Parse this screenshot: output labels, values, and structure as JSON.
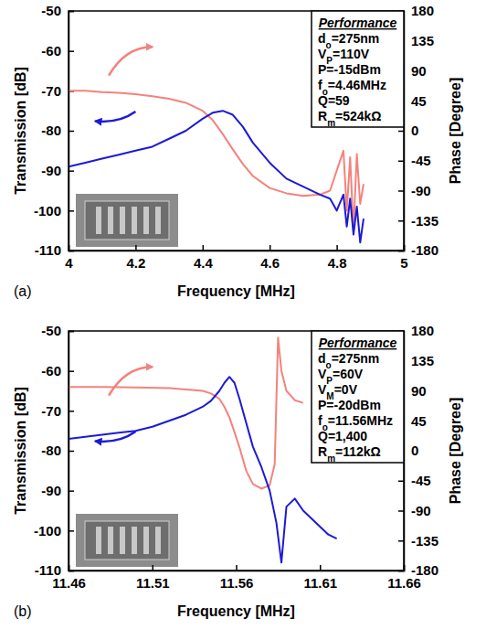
{
  "chart_data": [
    {
      "type": "line",
      "title": "(a)",
      "xlabel": "Frequency [MHz]",
      "ylabel": "Transmission [dB]",
      "y2label": "Phase [Degree]",
      "xlim": [
        4,
        5
      ],
      "xticks": [
        4,
        4.2,
        4.4,
        4.6,
        4.8,
        5
      ],
      "ylim": [
        -110,
        -50
      ],
      "yticks": [
        -110,
        -100,
        -90,
        -80,
        -70,
        -60,
        -50
      ],
      "y2lim": [
        -180,
        180
      ],
      "y2ticks": [
        -180,
        -135,
        -90,
        -45,
        0,
        45,
        90,
        135,
        180
      ],
      "series": [
        {
          "color": "#f4827c",
          "axis": "y2",
          "x": [
            4.0,
            4.05,
            4.1,
            4.15,
            4.2,
            4.25,
            4.3,
            4.35,
            4.4,
            4.43,
            4.46,
            4.49,
            4.52,
            4.55,
            4.6,
            4.65,
            4.7,
            4.75,
            4.78,
            4.8,
            4.82,
            4.83,
            4.84,
            4.85,
            4.86,
            4.87,
            4.88
          ],
          "values": [
            60,
            60,
            58,
            57,
            55,
            52,
            48,
            42,
            30,
            16,
            -5,
            -28,
            -50,
            -68,
            -86,
            -94,
            -98,
            -96,
            -90,
            -60,
            -30,
            -120,
            -40,
            -150,
            -35,
            -110,
            -80
          ]
        },
        {
          "color": "#1c1ad6",
          "x": [
            4.0,
            4.05,
            4.1,
            4.15,
            4.2,
            4.25,
            4.3,
            4.35,
            4.4,
            4.43,
            4.46,
            4.49,
            4.52,
            4.55,
            4.6,
            4.65,
            4.7,
            4.75,
            4.78,
            4.8,
            4.82,
            4.83,
            4.84,
            4.85,
            4.86,
            4.87,
            4.88
          ],
          "values": [
            -89,
            -88,
            -87,
            -86,
            -85,
            -84,
            -82,
            -80,
            -77,
            -75.5,
            -75,
            -76,
            -79,
            -83,
            -88,
            -92,
            -94,
            -96,
            -97,
            -100,
            -96,
            -104,
            -97,
            -106,
            -99,
            -108,
            -102
          ]
        }
      ],
      "annotation": {
        "heading": "Performance",
        "lines": [
          {
            "symbol": "d",
            "sub": "o",
            "text": "=275nm"
          },
          {
            "symbol": "V",
            "sub": "P",
            "text": "=110V"
          },
          {
            "symbol": "P",
            "text": "=-15dBm"
          },
          {
            "symbol": "f",
            "sub": "o",
            "text": "=4.46MHz"
          },
          {
            "symbol": "Q",
            "text": "=59"
          },
          {
            "symbol": "R",
            "sub": "m",
            "text": "=524kΩ"
          }
        ]
      }
    },
    {
      "type": "line",
      "title": "(b)",
      "xlabel": "Frequency [MHz]",
      "ylabel": "Transmission [dB]",
      "y2label": "Phase [Degree]",
      "xlim": [
        11.46,
        11.66
      ],
      "xticks": [
        11.46,
        11.51,
        11.56,
        11.61,
        11.66
      ],
      "ylim": [
        -110,
        -50
      ],
      "yticks": [
        -110,
        -100,
        -90,
        -80,
        -70,
        -60,
        -50
      ],
      "y2lim": [
        -180,
        180
      ],
      "y2ticks": [
        -180,
        -135,
        -90,
        -45,
        0,
        45,
        90,
        135,
        180
      ],
      "series": [
        {
          "color": "#f4827c",
          "axis": "y2",
          "x": [
            11.46,
            11.48,
            11.5,
            11.52,
            11.54,
            11.545,
            11.55,
            11.553,
            11.556,
            11.559,
            11.562,
            11.566,
            11.57,
            11.575,
            11.58,
            11.583,
            11.585,
            11.587,
            11.59,
            11.595,
            11.6
          ],
          "values": [
            96,
            96,
            95,
            94,
            90,
            86,
            78,
            66,
            50,
            28,
            5,
            -30,
            -50,
            -57,
            -52,
            -20,
            170,
            120,
            90,
            76,
            72
          ]
        },
        {
          "color": "#1c1ad6",
          "x": [
            11.46,
            11.47,
            11.48,
            11.49,
            11.5,
            11.51,
            11.52,
            11.53,
            11.54,
            11.545,
            11.55,
            11.553,
            11.556,
            11.559,
            11.562,
            11.566,
            11.57,
            11.575,
            11.58,
            11.584,
            11.587,
            11.59,
            11.595,
            11.6,
            11.605,
            11.61,
            11.615,
            11.62
          ],
          "values": [
            -77,
            -76.5,
            -76,
            -75.5,
            -75,
            -74,
            -72.5,
            -71,
            -69,
            -67.5,
            -65,
            -63,
            -61.5,
            -63,
            -67,
            -73,
            -79,
            -84,
            -90,
            -98,
            -108,
            -94,
            -92,
            -95,
            -97,
            -99,
            -101,
            -102
          ]
        }
      ],
      "annotation": {
        "heading": "Performance",
        "lines": [
          {
            "symbol": "d",
            "sub": "o",
            "text": "=275nm"
          },
          {
            "symbol": "V",
            "sub": "P",
            "text": "=60V"
          },
          {
            "symbol": "V",
            "sub": "M",
            "text": "=0V"
          },
          {
            "symbol": "P",
            "text": "=-20dBm"
          },
          {
            "symbol": "f",
            "sub": "o",
            "text": "=11.56MHz"
          },
          {
            "symbol": "Q",
            "text": "=1,400"
          },
          {
            "symbol": "R",
            "sub": "m",
            "text": "=112kΩ"
          }
        ]
      }
    }
  ]
}
